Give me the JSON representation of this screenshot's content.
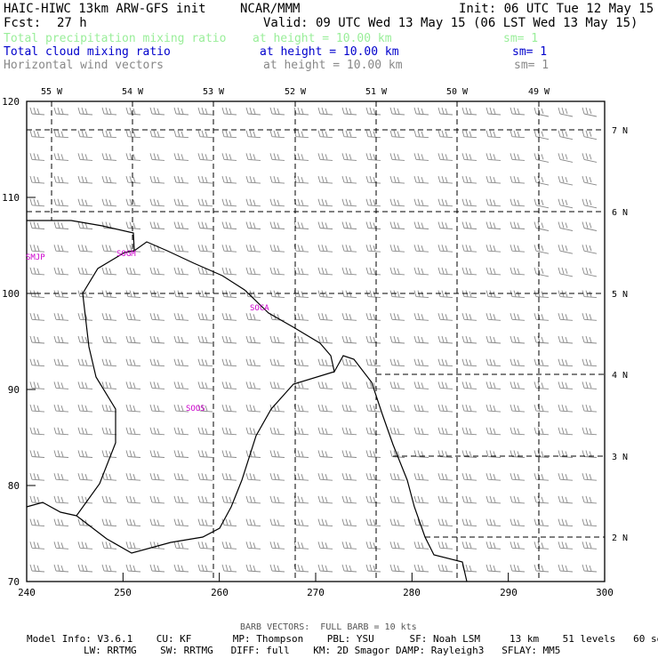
{
  "header": {
    "model": "HAIC-HIWC 13km ARW-GFS init",
    "org": "NCAR/MMM",
    "init": "Init: 06 UTC Tue 12 May 15",
    "fcst_label": "Fcst:",
    "fcst_value": "27 h",
    "valid": "Valid: 09 UTC Wed 13 May 15 (06 LST Wed 13 May 15)"
  },
  "fields": [
    {
      "name": "Total precipitation mixing ratio",
      "level": "at height = 10.00 km",
      "sm": "sm= 1",
      "color": "#99ee99"
    },
    {
      "name": "Total cloud mixing ratio",
      "level": "at height = 10.00 km",
      "sm": "sm= 1",
      "color": "#0000cc"
    },
    {
      "name": "Horizontal wind vectors",
      "level": "at height = 10.00 km",
      "sm": "sm= 1",
      "color": "#888888"
    }
  ],
  "map": {
    "top_labels": [
      "55 W",
      "54 W",
      "53 W",
      "52 W",
      "51 W",
      "50 W",
      "49 W"
    ],
    "right_labels": [
      "7 N",
      "6 N",
      "5 N",
      "4 N",
      "3 N",
      "2 N"
    ],
    "left_ticks": [
      "120",
      "110",
      "100",
      "90",
      "80",
      "70"
    ],
    "bottom_ticks": [
      "240",
      "250",
      "260",
      "270",
      "280",
      "290",
      "300"
    ],
    "stations": [
      "SMJP",
      "SOGM",
      "SOCA",
      "SOOS"
    ],
    "station_color": "#cc00cc",
    "coast_color": "#000000",
    "barb_color": "#888888"
  },
  "barb_note": "BARB VECTORS:  FULL BARB = 10 kts",
  "footer": {
    "line1": "Model Info: V3.6.1    CU: KF       MP: Thompson    PBL: YSU      SF: Noah LSM     13 km    51 levels   60 sec",
    "line2": "LW: RRTMG    SW: RRTMG   DIFF: full    KM: 2D Smagor DAMP: Rayleigh3   SFLAY: MM5"
  }
}
